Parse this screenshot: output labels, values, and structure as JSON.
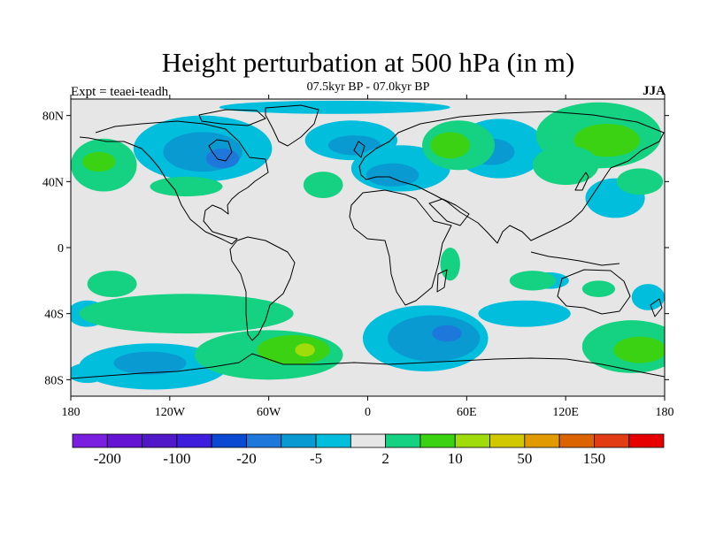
{
  "chart_data": {
    "type": "heatmap",
    "title": "Height perturbation at 500 hPa (in m)",
    "subtitle": "07.5kyr BP - 07.0kyr BP",
    "left_label": "Expt = teaei-teadh",
    "right_label": "JJA",
    "projection": "cylindrical equidistant",
    "xlim": [
      -180,
      180
    ],
    "ylim": [
      -90,
      90
    ],
    "x_ticks": [
      {
        "value": -180,
        "label": "180"
      },
      {
        "value": -120,
        "label": "120W"
      },
      {
        "value": -60,
        "label": "60W"
      },
      {
        "value": 0,
        "label": "0"
      },
      {
        "value": 60,
        "label": "60E"
      },
      {
        "value": 120,
        "label": "120E"
      },
      {
        "value": 180,
        "label": "180"
      }
    ],
    "y_ticks": [
      {
        "value": 80,
        "label": "80N"
      },
      {
        "value": 40,
        "label": "40N"
      },
      {
        "value": 0,
        "label": "0"
      },
      {
        "value": -40,
        "label": "40S"
      },
      {
        "value": -80,
        "label": "80S"
      }
    ],
    "colorbar": {
      "colors": [
        "#7a1ee0",
        "#6414d2",
        "#5018c8",
        "#3c1edc",
        "#0a4ad2",
        "#1e78dc",
        "#0a9ad2",
        "#00bedc",
        "#e6e6e6",
        "#14d282",
        "#3cd214",
        "#a0dc0a",
        "#d2c800",
        "#e19b00",
        "#dc6400",
        "#e13c14",
        "#e60000"
      ],
      "labels": [
        {
          "after_box": 1,
          "text": "-200"
        },
        {
          "after_box": 3,
          "text": "-100"
        },
        {
          "after_box": 5,
          "text": "-20"
        },
        {
          "after_box": 7,
          "text": "-5"
        },
        {
          "after_box": 9,
          "text": "2"
        },
        {
          "after_box": 11,
          "text": "10"
        },
        {
          "after_box": 13,
          "text": "50"
        },
        {
          "after_box": 15,
          "text": "150"
        }
      ]
    },
    "field_regions": [
      {
        "lon": 35,
        "lat": -55,
        "rlon": 38,
        "rlat": 20,
        "class": 7
      },
      {
        "lon": 40,
        "lat": -55,
        "rlon": 28,
        "rlat": 14,
        "class": 6
      },
      {
        "lon": 48,
        "lat": -52,
        "rlon": 9,
        "rlat": 5,
        "class": 5
      },
      {
        "lon": -100,
        "lat": 60,
        "rlon": 42,
        "rlat": 20,
        "class": 7
      },
      {
        "lon": -100,
        "lat": 58,
        "rlon": 24,
        "rlat": 12,
        "class": 6
      },
      {
        "lon": -88,
        "lat": 54,
        "rlon": 10,
        "rlat": 6,
        "class": 5
      },
      {
        "lon": -10,
        "lat": 65,
        "rlon": 28,
        "rlat": 12,
        "class": 7
      },
      {
        "lon": -8,
        "lat": 62,
        "rlon": 16,
        "rlat": 6,
        "class": 6
      },
      {
        "lon": 20,
        "lat": 48,
        "rlon": 30,
        "rlat": 14,
        "class": 7
      },
      {
        "lon": 15,
        "lat": 44,
        "rlon": 16,
        "rlat": 7,
        "class": 6
      },
      {
        "lon": 80,
        "lat": 60,
        "rlon": 28,
        "rlat": 18,
        "class": 7
      },
      {
        "lon": 75,
        "lat": 58,
        "rlon": 14,
        "rlat": 8,
        "class": 6
      },
      {
        "lon": -130,
        "lat": -72,
        "rlon": 45,
        "rlat": 14,
        "class": 7
      },
      {
        "lon": -132,
        "lat": -70,
        "rlon": 22,
        "rlat": 7,
        "class": 6
      },
      {
        "lon": -170,
        "lat": -40,
        "rlon": 12,
        "rlat": 8,
        "class": 7
      },
      {
        "lon": -170,
        "lat": -76,
        "rlon": 12,
        "rlat": 6,
        "class": 7
      },
      {
        "lon": 170,
        "lat": -30,
        "rlon": 10,
        "rlat": 8,
        "class": 7
      },
      {
        "lon": 150,
        "lat": 30,
        "rlon": 18,
        "rlat": 12,
        "class": 7
      },
      {
        "lon": 95,
        "lat": -40,
        "rlon": 28,
        "rlat": 8,
        "class": 7
      },
      {
        "lon": 110,
        "lat": -20,
        "rlon": 12,
        "rlat": 5,
        "class": 7
      },
      {
        "lon": -20,
        "lat": 85,
        "rlon": 70,
        "rlat": 4,
        "class": 7
      },
      {
        "lon": 55,
        "lat": 62,
        "rlon": 22,
        "rlat": 15,
        "class": 9
      },
      {
        "lon": 50,
        "lat": 62,
        "rlon": 12,
        "rlat": 8,
        "class": 10
      },
      {
        "lon": 140,
        "lat": 68,
        "rlon": 38,
        "rlat": 20,
        "class": 9
      },
      {
        "lon": 145,
        "lat": 65,
        "rlon": 20,
        "rlat": 10,
        "class": 10
      },
      {
        "lon": -160,
        "lat": 50,
        "rlon": 20,
        "rlat": 16,
        "class": 9
      },
      {
        "lon": -163,
        "lat": 52,
        "rlon": 10,
        "rlat": 6,
        "class": 10
      },
      {
        "lon": -60,
        "lat": -65,
        "rlon": 45,
        "rlat": 15,
        "class": 9
      },
      {
        "lon": -45,
        "lat": -62,
        "rlon": 22,
        "rlat": 9,
        "class": 10
      },
      {
        "lon": -38,
        "lat": -62,
        "rlon": 6,
        "rlat": 4,
        "class": 11
      },
      {
        "lon": -110,
        "lat": -40,
        "rlon": 65,
        "rlat": 12,
        "class": 9
      },
      {
        "lon": -155,
        "lat": -22,
        "rlon": 15,
        "rlat": 8,
        "class": 9
      },
      {
        "lon": 160,
        "lat": -60,
        "rlon": 30,
        "rlat": 16,
        "class": 9
      },
      {
        "lon": 165,
        "lat": -62,
        "rlon": 16,
        "rlat": 8,
        "class": 10
      },
      {
        "lon": 120,
        "lat": 50,
        "rlon": 20,
        "rlat": 12,
        "class": 9
      },
      {
        "lon": 165,
        "lat": 40,
        "rlon": 14,
        "rlat": 8,
        "class": 9
      },
      {
        "lon": -110,
        "lat": 37,
        "rlon": 22,
        "rlat": 6,
        "class": 9
      },
      {
        "lon": -27,
        "lat": 38,
        "rlon": 12,
        "rlat": 8,
        "class": 9
      },
      {
        "lon": 100,
        "lat": -20,
        "rlon": 14,
        "rlat": 6,
        "class": 9
      },
      {
        "lon": 140,
        "lat": -25,
        "rlon": 10,
        "rlat": 5,
        "class": 9
      },
      {
        "lon": 50,
        "lat": -10,
        "rlon": 6,
        "rlat": 10,
        "class": 9
      }
    ]
  }
}
